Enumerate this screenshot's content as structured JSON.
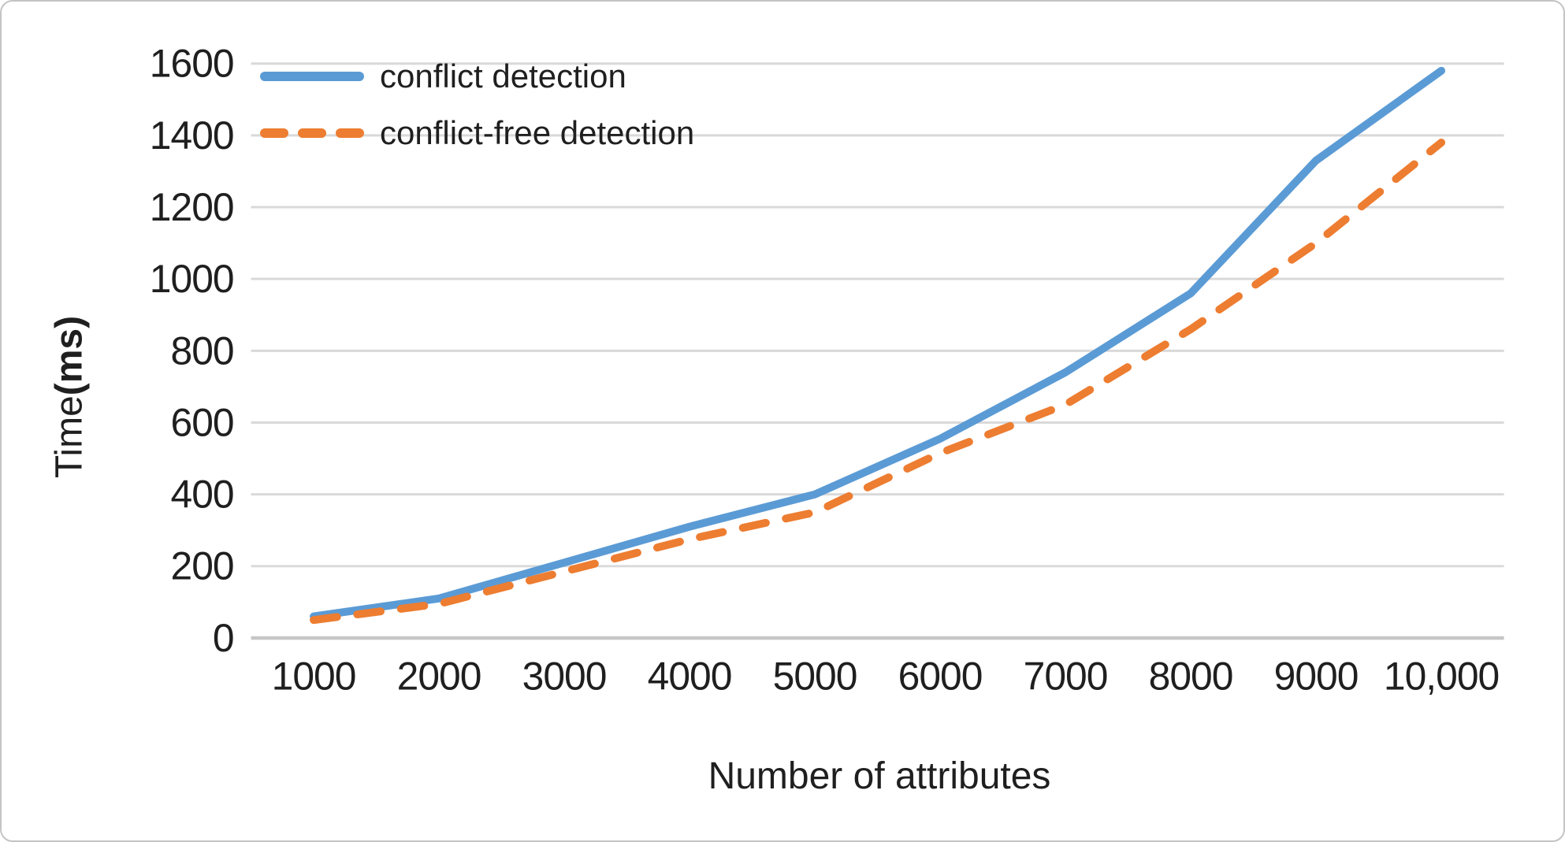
{
  "chart_data": {
    "type": "line",
    "title": "",
    "xlabel": "Number of attributes",
    "ylabel": "Time(ms)",
    "ylabel_parts": {
      "regular": "Time",
      "bold": "(ms)"
    },
    "categories": [
      "1000",
      "2000",
      "3000",
      "4000",
      "5000",
      "6000",
      "7000",
      "8000",
      "9000",
      "10,000"
    ],
    "x_values": [
      1000,
      2000,
      3000,
      4000,
      5000,
      6000,
      7000,
      8000,
      9000,
      10000
    ],
    "series": [
      {
        "name": "conflict detection",
        "style": "solid",
        "color": "#5B9BD5",
        "values": [
          60,
          110,
          210,
          310,
          400,
          555,
          740,
          960,
          1330,
          1580
        ]
      },
      {
        "name": "conflict-free detection",
        "style": "dashed",
        "color": "#ED7D31",
        "values": [
          50,
          95,
          185,
          275,
          350,
          515,
          650,
          860,
          1100,
          1380
        ]
      }
    ],
    "ylim": [
      0,
      1600
    ],
    "yticks": [
      0,
      200,
      400,
      600,
      800,
      1000,
      1200,
      1400,
      1600
    ],
    "grid": "horizontal",
    "legend_position": "top-left",
    "colors": {
      "gridline": "#D9D9D9",
      "axis": "#C6C6C6",
      "text": "#1F1F1F",
      "background": "#FFFFFF"
    }
  }
}
